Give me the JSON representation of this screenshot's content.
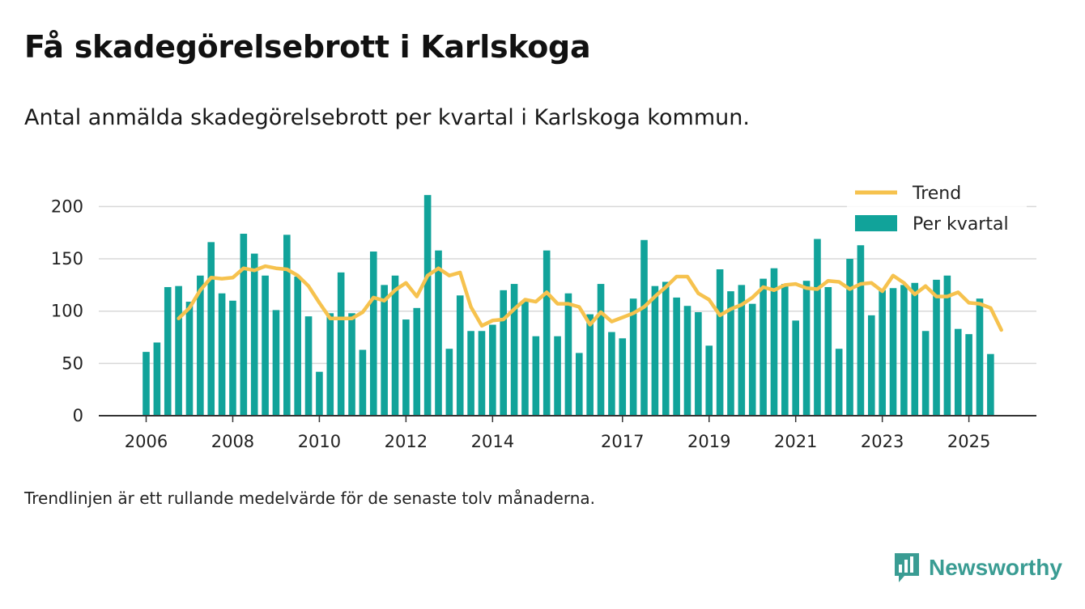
{
  "title": "Få skadegörelsebrott i Karlskoga",
  "subtitle": "Antal anmälda skadegörelsebrott per kvartal i Karlskoga kommun.",
  "footnote": "Trendlinjen är ett rullande medelvärde för de senaste tolv månaderna.",
  "brand": {
    "name": "Newsworthy",
    "icon": "newsworthy-logo-icon"
  },
  "colors": {
    "bar": "#11a39a",
    "trend": "#f6c24e",
    "grid": "#d8d8d8",
    "axis": "#333333"
  },
  "chart_data": {
    "type": "bar",
    "title": "Få skadegörelsebrott i Karlskoga",
    "xlabel": "",
    "ylabel": "",
    "ylim": [
      0,
      210
    ],
    "yticks": [
      0,
      50,
      100,
      150,
      200
    ],
    "xticks": [
      {
        "label": "2006",
        "index": 0
      },
      {
        "label": "2008",
        "index": 8
      },
      {
        "label": "2010",
        "index": 16
      },
      {
        "label": "2012",
        "index": 24
      },
      {
        "label": "2014",
        "index": 32
      },
      {
        "label": "2017",
        "index": 44
      },
      {
        "label": "2019",
        "index": 52
      },
      {
        "label": "2021",
        "index": 60
      },
      {
        "label": "2023",
        "index": 68
      },
      {
        "label": "2025",
        "index": 76
      }
    ],
    "legend": [
      {
        "label": "Trend",
        "kind": "line"
      },
      {
        "label": "Per kvartal",
        "kind": "bar"
      }
    ],
    "legend_position": "top-right",
    "series": [
      {
        "name": "Per kvartal",
        "type": "bar",
        "values": [
          61,
          70,
          123,
          124,
          109,
          134,
          166,
          117,
          110,
          174,
          155,
          134,
          101,
          173,
          133,
          95,
          42,
          98,
          137,
          98,
          63,
          157,
          125,
          134,
          92,
          103,
          211,
          158,
          64,
          115,
          81,
          81,
          87,
          120,
          126,
          110,
          76,
          158,
          76,
          117,
          60,
          97,
          126,
          80,
          74,
          112,
          168,
          124,
          128,
          113,
          105,
          99,
          67,
          140,
          119,
          125,
          107,
          131,
          141,
          126,
          91,
          129,
          169,
          123,
          64,
          150,
          163,
          96,
          120,
          122,
          125,
          127,
          81,
          130,
          134,
          83,
          78,
          112,
          59
        ]
      },
      {
        "name": "Trend",
        "type": "line",
        "start_index": 3,
        "values": [
          93,
          103,
          120,
          132,
          131,
          132,
          141,
          139,
          143,
          141,
          140,
          134,
          124,
          108,
          93,
          93,
          93,
          99,
          113,
          110,
          120,
          127,
          114,
          134,
          141,
          134,
          137,
          104,
          86,
          91,
          92,
          102,
          111,
          109,
          118,
          107,
          107,
          104,
          87,
          99,
          90,
          94,
          98,
          104,
          114,
          123,
          133,
          133,
          117,
          111,
          96,
          102,
          106,
          113,
          123,
          120,
          125,
          126,
          122,
          121,
          129,
          128,
          121,
          126,
          127,
          119,
          134,
          127,
          116,
          124,
          114,
          114,
          118,
          108,
          107,
          103,
          82
        ]
      }
    ]
  }
}
